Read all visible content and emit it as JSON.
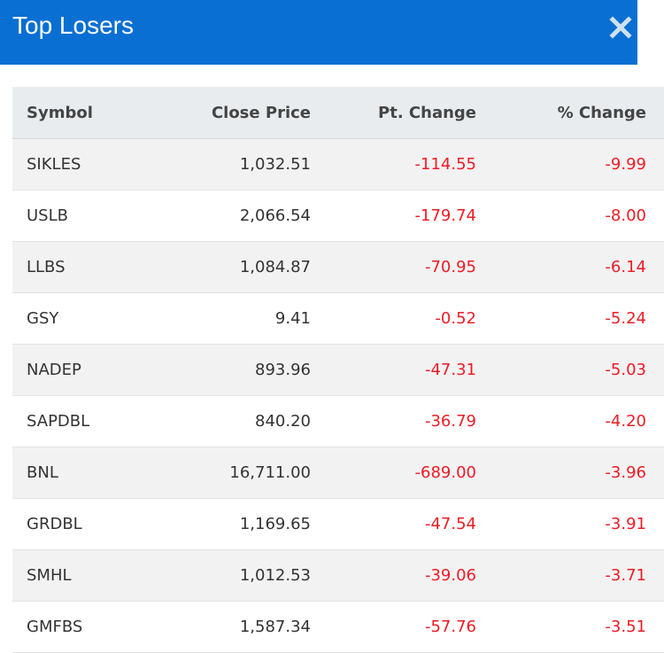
{
  "header": {
    "title": "Top Losers",
    "close_icon": "close-icon",
    "background_color": "#0a6fd3"
  },
  "table": {
    "columns": [
      "Symbol",
      "Close Price",
      "Pt. Change",
      "% Change"
    ],
    "negative_color": "#ee1c25",
    "rows": [
      {
        "symbol": "SIKLES",
        "close": "1,032.51",
        "pt_change": "-114.55",
        "pct_change": "-9.99"
      },
      {
        "symbol": "USLB",
        "close": "2,066.54",
        "pt_change": "-179.74",
        "pct_change": "-8.00"
      },
      {
        "symbol": "LLBS",
        "close": "1,084.87",
        "pt_change": "-70.95",
        "pct_change": "-6.14"
      },
      {
        "symbol": "GSY",
        "close": "9.41",
        "pt_change": "-0.52",
        "pct_change": "-5.24"
      },
      {
        "symbol": "NADEP",
        "close": "893.96",
        "pt_change": "-47.31",
        "pct_change": "-5.03"
      },
      {
        "symbol": "SAPDBL",
        "close": "840.20",
        "pt_change": "-36.79",
        "pct_change": "-4.20"
      },
      {
        "symbol": "BNL",
        "close": "16,711.00",
        "pt_change": "-689.00",
        "pct_change": "-3.96"
      },
      {
        "symbol": "GRDBL",
        "close": "1,169.65",
        "pt_change": "-47.54",
        "pct_change": "-3.91"
      },
      {
        "symbol": "SMHL",
        "close": "1,012.53",
        "pt_change": "-39.06",
        "pct_change": "-3.71"
      },
      {
        "symbol": "GMFBS",
        "close": "1,587.34",
        "pt_change": "-57.76",
        "pct_change": "-3.51"
      }
    ]
  }
}
